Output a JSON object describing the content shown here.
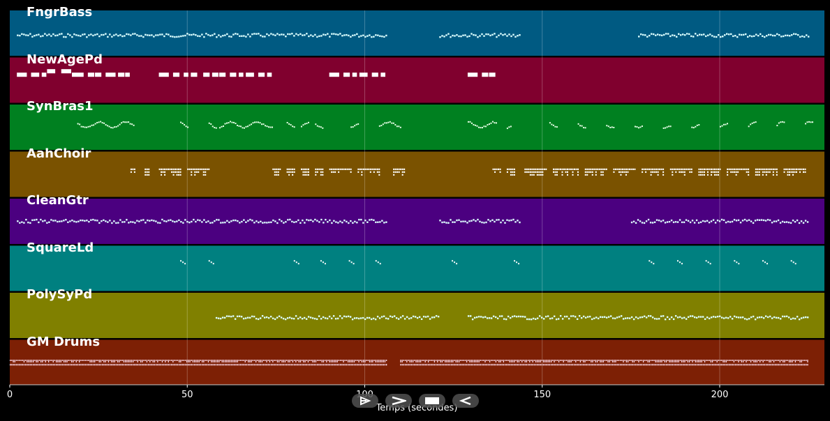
{
  "chart_data": {
    "type": "piano-roll",
    "xlabel": "Temps (secondes)",
    "xlim": [
      0,
      229.5
    ],
    "xticks": [
      0,
      50,
      100,
      150,
      200
    ],
    "grid": true,
    "tracks": [
      {
        "name": "FngrBass",
        "color": "#005a82",
        "segments": [
          [
            2,
            106
          ],
          [
            121,
            144
          ],
          [
            177,
            225
          ]
        ],
        "style": "dense-line",
        "pitch": 0.55
      },
      {
        "name": "NewAgePd",
        "color": "#80002e",
        "notes": [
          [
            2,
            5
          ],
          [
            6,
            8.5
          ],
          [
            9,
            10.5
          ],
          [
            10.5,
            13
          ],
          [
            14.5,
            17.5
          ],
          [
            17.5,
            21
          ],
          [
            22,
            24
          ],
          [
            24,
            26
          ],
          [
            27,
            30
          ],
          [
            30.5,
            32.5
          ],
          [
            32.5,
            34
          ],
          [
            42,
            45
          ],
          [
            46,
            48
          ],
          [
            49,
            50.5
          ],
          [
            51,
            53
          ],
          [
            54.5,
            56.5
          ],
          [
            57,
            59
          ],
          [
            59,
            61
          ],
          [
            62,
            64
          ],
          [
            64.5,
            66
          ],
          [
            66.5,
            69
          ],
          [
            70,
            72
          ],
          [
            72.5,
            74
          ],
          [
            90,
            93
          ],
          [
            94,
            96
          ],
          [
            96.5,
            98
          ],
          [
            98.5,
            101
          ],
          [
            102,
            104
          ],
          [
            104.5,
            106
          ],
          [
            129,
            132
          ],
          [
            133,
            135
          ],
          [
            135,
            137
          ]
        ],
        "pitch": 0.38
      },
      {
        "name": "SynBras1",
        "color": "#008020",
        "segments": [
          [
            19,
            35
          ],
          [
            48,
            50
          ],
          [
            56,
            58
          ],
          [
            59,
            74
          ],
          [
            78,
            80
          ],
          [
            82,
            84
          ],
          [
            86,
            88
          ],
          [
            96,
            98
          ],
          [
            104,
            110
          ],
          [
            129,
            137
          ],
          [
            140,
            141
          ]
        ],
        "extra": [
          [
            152,
            154
          ],
          [
            160,
            162
          ],
          [
            168,
            170
          ],
          [
            176,
            178
          ],
          [
            184,
            186
          ],
          [
            192,
            194
          ],
          [
            200,
            202
          ],
          [
            208,
            210
          ],
          [
            216,
            218
          ],
          [
            224,
            226
          ]
        ],
        "style": "wavy",
        "pitch": 0.45
      },
      {
        "name": "AahChoir",
        "color": "#7a5200",
        "segments": [
          [
            34,
            35
          ],
          [
            38,
            39
          ],
          [
            42,
            48
          ],
          [
            50,
            56
          ],
          [
            74,
            76
          ],
          [
            78,
            80
          ],
          [
            82,
            84
          ],
          [
            86,
            88
          ],
          [
            90,
            96
          ],
          [
            98,
            104
          ],
          [
            108,
            111
          ],
          [
            136,
            138
          ],
          [
            140,
            142
          ],
          [
            145,
            151
          ],
          [
            153,
            160
          ],
          [
            162,
            168
          ],
          [
            170,
            176
          ],
          [
            178,
            184
          ],
          [
            186,
            192
          ],
          [
            194,
            200
          ],
          [
            202,
            208
          ],
          [
            210,
            216
          ],
          [
            218,
            224
          ]
        ],
        "style": "cluster",
        "pitch": 0.45
      },
      {
        "name": "CleanGtr",
        "color": "#4b0080",
        "segments": [
          [
            2,
            106
          ],
          [
            121,
            144
          ],
          [
            175,
            225
          ]
        ],
        "style": "dense-line",
        "pitch": 0.5
      },
      {
        "name": "SquareLd",
        "color": "#008080",
        "segments": [
          [
            48,
            49.5
          ],
          [
            56,
            57.5
          ],
          [
            80,
            81.5
          ],
          [
            87.5,
            89
          ],
          [
            95.5,
            97
          ],
          [
            103,
            104.5
          ],
          [
            124.5,
            126
          ],
          [
            142,
            143.5
          ],
          [
            180,
            181.5
          ],
          [
            188,
            189.5
          ],
          [
            196,
            197.5
          ],
          [
            204,
            205.5
          ],
          [
            212,
            213.5
          ],
          [
            220,
            221.5
          ]
        ],
        "style": "blip",
        "pitch": 0.35
      },
      {
        "name": "PolySyPd",
        "color": "#808000",
        "segments": [
          [
            58,
            121
          ],
          [
            129,
            225
          ]
        ],
        "style": "dense-line",
        "pitch": 0.55
      },
      {
        "name": "GM Drums",
        "color": "#7d2005",
        "segments": [
          [
            0,
            106
          ],
          [
            110,
            225
          ]
        ],
        "style": "drums",
        "pitch": 0.5
      }
    ]
  },
  "controls": [
    {
      "name": "play-icon",
      "glyph": "play-outline"
    },
    {
      "name": "forward-icon",
      "glyph": "chevron-right"
    },
    {
      "name": "stop-icon",
      "glyph": "square"
    },
    {
      "name": "rewind-icon",
      "glyph": "triangle-left"
    }
  ]
}
